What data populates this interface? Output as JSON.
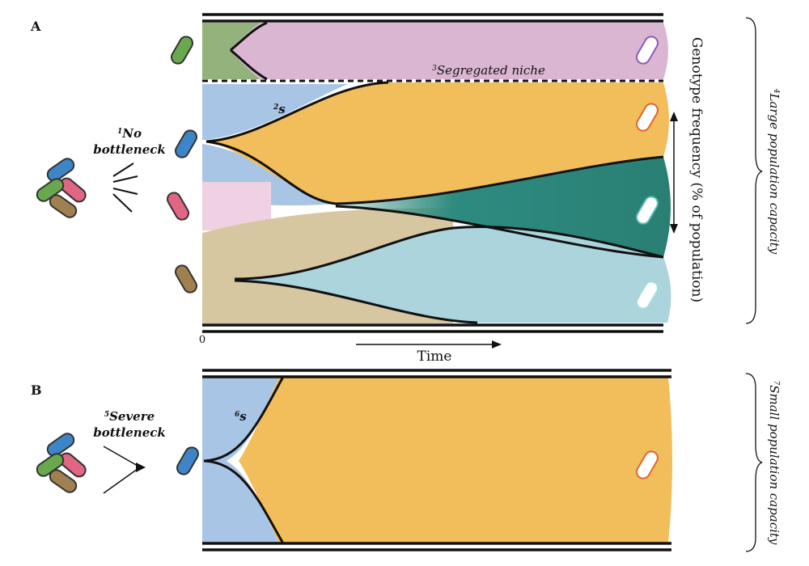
{
  "panel_a": {
    "label": "A",
    "bottleneck": {
      "note": "1",
      "lines": [
        "No",
        "bottleneck"
      ]
    },
    "selection": {
      "note": "2",
      "text": "s"
    },
    "niche": {
      "note": "3",
      "text": "Segregated niche"
    },
    "capacity": {
      "note": "4",
      "text": "Large population capacity"
    },
    "y_axis": "Genotype frequency (% of population)",
    "x_axis": "Time",
    "origin": "0"
  },
  "panel_b": {
    "label": "B",
    "bottleneck": {
      "note": "5",
      "lines": [
        "Severe",
        "bottleneck"
      ]
    },
    "selection": {
      "note": "6",
      "text": "s"
    },
    "capacity": {
      "note": "7",
      "text": "Small population capacity"
    }
  }
}
